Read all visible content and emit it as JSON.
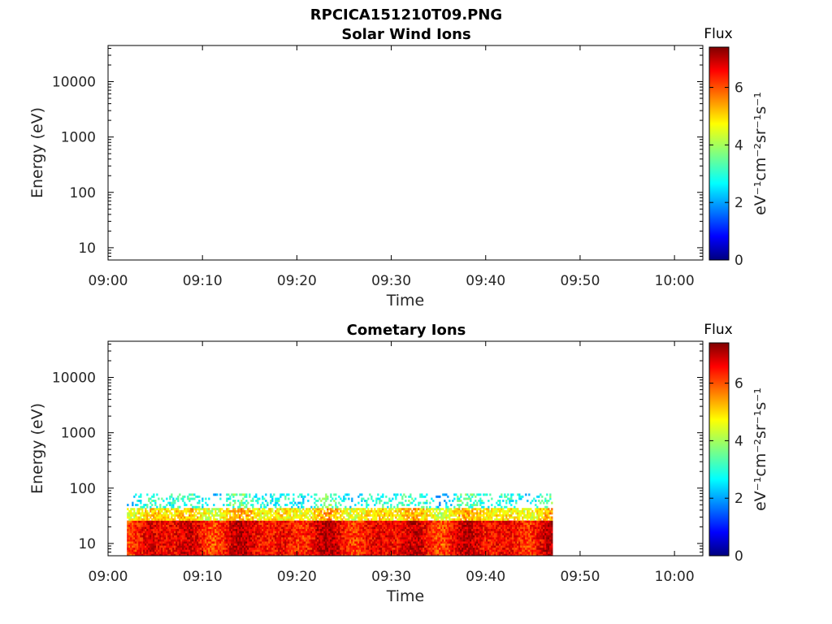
{
  "figure": {
    "title": "RPCICA151210T09.PNG"
  },
  "chart_data": [
    {
      "type": "heatmap",
      "title": "Solar Wind Ions",
      "xlabel": "Time",
      "ylabel": "Energy (eV)",
      "x_tick_labels": [
        "09:00",
        "09:10",
        "09:20",
        "09:30",
        "09:40",
        "09:50",
        "10:00"
      ],
      "x_range": [
        "09:00",
        "10:03"
      ],
      "y_scale": "log",
      "y_tick_values": [
        10,
        100,
        1000,
        10000
      ],
      "y_tick_labels": [
        "10",
        "100",
        "1000",
        "10000"
      ],
      "y_range": [
        6,
        45000
      ],
      "data": [],
      "colorbar": {
        "title": "Flux",
        "label": "eV⁻¹cm⁻²sr⁻¹s⁻¹",
        "tick_labels": [
          "0",
          "2",
          "4",
          "6"
        ],
        "range": [
          0,
          7.4
        ],
        "colormap": "jet"
      }
    },
    {
      "type": "heatmap",
      "title": "Cometary Ions",
      "xlabel": "Time",
      "ylabel": "Energy (eV)",
      "x_tick_labels": [
        "09:00",
        "09:10",
        "09:20",
        "09:30",
        "09:40",
        "09:50",
        "10:00"
      ],
      "x_range": [
        "09:00",
        "10:03"
      ],
      "y_scale": "log",
      "y_tick_values": [
        10,
        100,
        1000,
        10000
      ],
      "y_tick_labels": [
        "10",
        "100",
        "1000",
        "10000"
      ],
      "y_range": [
        6,
        45000
      ],
      "data_extent": {
        "time_start": "09:02",
        "time_end": "09:47",
        "energy_min_ev": 6,
        "energy_max_ev": 80
      },
      "flux_bands": [
        {
          "energy_range_ev": [
            6,
            26
          ],
          "typical_flux": 6.5
        },
        {
          "energy_range_ev": [
            26,
            45
          ],
          "typical_flux": 4.8
        },
        {
          "energy_range_ev": [
            45,
            80
          ],
          "typical_flux": 3.0
        }
      ],
      "colorbar": {
        "title": "Flux",
        "label": "eV⁻¹cm⁻²sr⁻¹s⁻¹",
        "tick_labels": [
          "0",
          "2",
          "4",
          "6"
        ],
        "range": [
          0,
          7.4
        ],
        "colormap": "jet"
      }
    }
  ]
}
